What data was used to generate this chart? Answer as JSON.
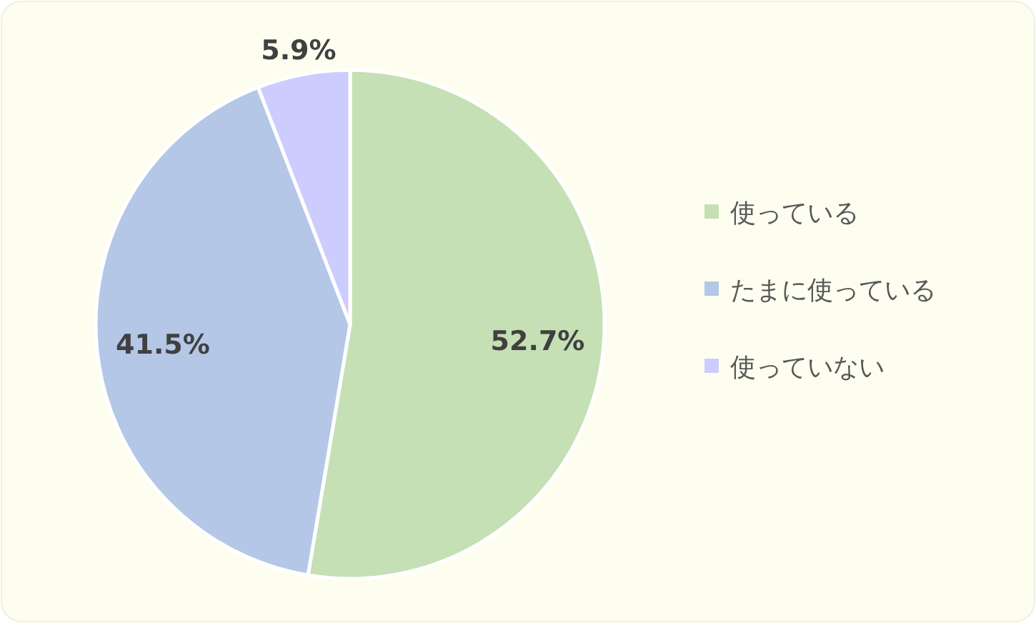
{
  "chart_data": {
    "type": "pie",
    "categories": [
      "使っている",
      "たまに使っている",
      "使っていない"
    ],
    "values": [
      52.7,
      41.5,
      5.9
    ],
    "colors": [
      "#c5e0b4",
      "#b4c7e7",
      "#ccccff"
    ],
    "value_labels": [
      "52.7%",
      "41.5%",
      "5.9%"
    ],
    "legend": "right"
  }
}
